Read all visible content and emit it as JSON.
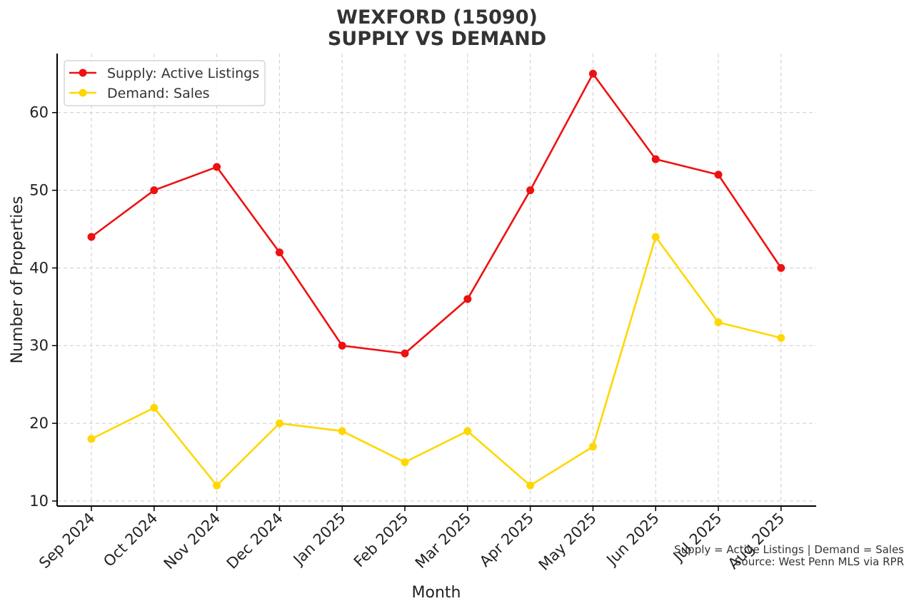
{
  "title_line1": "WEXFORD (15090)",
  "title_line2": "SUPPLY VS DEMAND",
  "footnote_line1": "Supply = Active Listings | Demand = Sales",
  "footnote_line2": "Source: West Penn MLS via RPR",
  "chart_data": {
    "type": "line",
    "title": "WEXFORD (15090)\nSUPPLY VS DEMAND",
    "xlabel": "Month",
    "ylabel": "Number of Properties",
    "categories": [
      "Sep 2024",
      "Oct 2024",
      "Nov 2024",
      "Dec 2024",
      "Jan 2025",
      "Feb 2025",
      "Mar 2025",
      "Apr 2025",
      "May 2025",
      "Jun 2025",
      "Jul 2025",
      "Aug 2025"
    ],
    "ylim": [
      9.35,
      67.6
    ],
    "yticks": [
      10,
      20,
      30,
      40,
      50,
      60
    ],
    "grid": true,
    "legend_position": "top-left",
    "series": [
      {
        "name": "Supply: Active Listings",
        "color": "#ee1111",
        "values": [
          44,
          50,
          53,
          42,
          30,
          29,
          36,
          50,
          65,
          54,
          52,
          40
        ]
      },
      {
        "name": "Demand: Sales",
        "color": "#ffd700",
        "values": [
          18,
          22,
          12,
          20,
          19,
          15,
          19,
          12,
          17,
          44,
          33,
          31
        ]
      }
    ]
  }
}
